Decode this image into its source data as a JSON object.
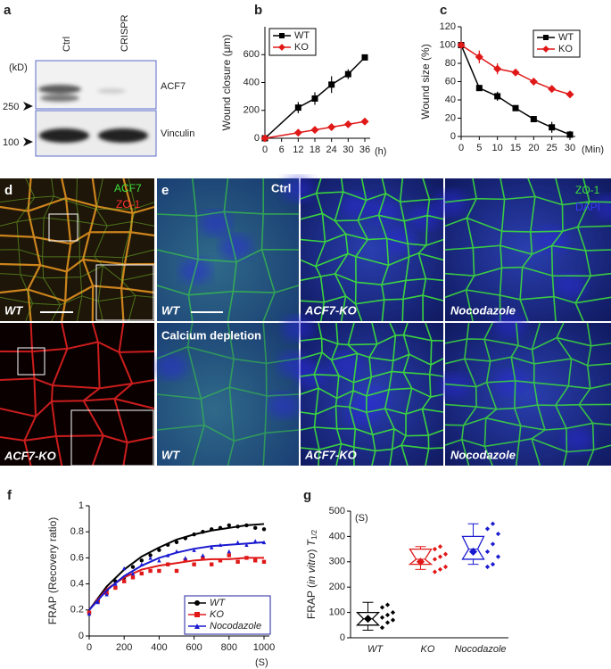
{
  "blot": {
    "letter": "a",
    "lanes": [
      "Ctrl",
      "CRISPR"
    ],
    "unit": "(kD)",
    "markers": [
      "250",
      "100"
    ],
    "proteins": [
      "ACF7",
      "Vinculin"
    ]
  },
  "microscopy": {
    "d": {
      "letter": "d",
      "channels": [
        "ACF7",
        "ZO-1"
      ],
      "rows": [
        "WT",
        "ACF7-KO"
      ]
    },
    "e": {
      "letter": "e",
      "condition": "Ctrl",
      "channels": [
        "ZO-1",
        "DAPI"
      ],
      "columns": [
        "WT",
        "ACF7-KO",
        "Nocodazole"
      ],
      "row2_condition": "Calcium depletion",
      "row2_columns": [
        "WT",
        "ACF7-KO",
        "Nocodazole"
      ]
    }
  },
  "chart_data": [
    {
      "type": "line",
      "letter": "b",
      "ylabel": "Wound closure (μm)",
      "x_unit": "(h)",
      "xlim": [
        0,
        36
      ],
      "xticks": [
        0,
        6,
        12,
        18,
        24,
        30,
        36
      ],
      "ylim": [
        0,
        800
      ],
      "yticks": [
        0,
        200,
        400,
        600
      ],
      "x": [
        0,
        12,
        18,
        24,
        30,
        36
      ],
      "legend": "upper left",
      "series": [
        {
          "name": "WT",
          "color": "#000000",
          "marker": "square",
          "values": [
            0,
            220,
            285,
            385,
            460,
            580
          ],
          "errors": [
            0,
            40,
            45,
            60,
            35,
            20
          ]
        },
        {
          "name": "KO",
          "color": "#e01818",
          "marker": "diamond",
          "values": [
            0,
            40,
            60,
            80,
            100,
            120
          ],
          "errors": [
            0,
            8,
            8,
            8,
            8,
            10
          ]
        }
      ]
    },
    {
      "type": "line",
      "letter": "c",
      "ylabel": "Wound size (%)",
      "x_unit": "(Min)",
      "xlim": [
        0,
        30
      ],
      "xticks": [
        0,
        5,
        10,
        15,
        20,
        25,
        30
      ],
      "ylim": [
        0,
        120
      ],
      "yticks": [
        0,
        20,
        40,
        60,
        80,
        100,
        120
      ],
      "x": [
        0,
        5,
        10,
        15,
        20,
        25,
        30
      ],
      "legend": "upper right",
      "series": [
        {
          "name": "WT",
          "color": "#000000",
          "marker": "square",
          "values": [
            100,
            53,
            44,
            31,
            19,
            10,
            2
          ],
          "errors": [
            0,
            3,
            5,
            2,
            2,
            6,
            4
          ]
        },
        {
          "name": "KO",
          "color": "#e01818",
          "marker": "diamond",
          "values": [
            100,
            87,
            74,
            70,
            60,
            52,
            46
          ],
          "errors": [
            0,
            7,
            6,
            3,
            3,
            3,
            3
          ]
        }
      ]
    },
    {
      "type": "scatter",
      "letter": "f",
      "ylabel": "FRAP (Recovery ratio)",
      "x_unit": "(S)",
      "xlim": [
        0,
        1000
      ],
      "xticks": [
        0,
        200,
        400,
        600,
        800,
        1000
      ],
      "ylim": [
        0,
        1
      ],
      "yticks": [
        0,
        0.2,
        0.4,
        0.6,
        0.8,
        1
      ],
      "x": [
        0,
        50,
        100,
        150,
        200,
        250,
        300,
        350,
        400,
        450,
        500,
        550,
        600,
        650,
        700,
        750,
        800,
        850,
        900,
        950,
        1000
      ],
      "fit_x": [
        0,
        100,
        200,
        300,
        400,
        500,
        600,
        700,
        800,
        900,
        1000
      ],
      "legend": "lower right",
      "series": [
        {
          "name": "WT",
          "color": "#000000",
          "marker": "circle",
          "values": [
            0.18,
            0.27,
            0.35,
            0.42,
            0.45,
            0.53,
            0.58,
            0.62,
            0.66,
            0.7,
            0.72,
            0.75,
            0.78,
            0.8,
            0.82,
            0.83,
            0.85,
            0.84,
            0.85,
            0.83,
            0.82
          ],
          "fit": [
            0.2,
            0.38,
            0.51,
            0.61,
            0.68,
            0.74,
            0.78,
            0.81,
            0.83,
            0.85,
            0.86
          ]
        },
        {
          "name": "KO",
          "color": "#e01818",
          "marker": "square",
          "values": [
            0.18,
            0.27,
            0.33,
            0.37,
            0.42,
            0.45,
            0.48,
            0.5,
            0.5,
            0.55,
            0.5,
            0.58,
            0.55,
            0.6,
            0.55,
            0.58,
            0.62,
            0.57,
            0.6,
            0.58,
            0.57
          ],
          "fit": [
            0.2,
            0.36,
            0.45,
            0.51,
            0.54,
            0.56,
            0.58,
            0.59,
            0.59,
            0.6,
            0.6
          ]
        },
        {
          "name": "Nocodazole",
          "color": "#1a1ad0",
          "marker": "triangle",
          "values": [
            0.17,
            0.26,
            0.32,
            0.4,
            0.52,
            0.48,
            0.55,
            0.6,
            0.58,
            0.62,
            0.65,
            0.6,
            0.66,
            0.62,
            0.68,
            0.7,
            0.65,
            0.72,
            0.7,
            0.73,
            0.72
          ],
          "fit": [
            0.2,
            0.35,
            0.46,
            0.54,
            0.6,
            0.64,
            0.67,
            0.69,
            0.7,
            0.71,
            0.72
          ]
        }
      ]
    },
    {
      "type": "box",
      "letter": "g",
      "ylabel_parts": [
        "FRAP (",
        "in vitro",
        ") ",
        "T",
        "1/2"
      ],
      "y_unit": "(S)",
      "ylim": [
        0,
        500
      ],
      "yticks": [
        0,
        100,
        200,
        300,
        400,
        500
      ],
      "categories": [
        "WT",
        "KO",
        "Nocodazole"
      ],
      "series": [
        {
          "color": "#000000",
          "low": 30,
          "q1": 50,
          "median": 75,
          "q3": 100,
          "high": 140,
          "mean": 75,
          "points": [
            40,
            60,
            70,
            80,
            90,
            100,
            120,
            130
          ]
        },
        {
          "color": "#e01818",
          "low": 270,
          "q1": 290,
          "median": 310,
          "q3": 350,
          "high": 360,
          "mean": 300,
          "points": [
            260,
            270,
            280,
            310,
            320,
            330,
            350,
            360
          ]
        },
        {
          "color": "#1a1ad0",
          "low": 290,
          "q1": 310,
          "median": 350,
          "q3": 400,
          "high": 450,
          "mean": 340,
          "points": [
            280,
            290,
            320,
            340,
            370,
            410,
            430,
            450
          ]
        }
      ]
    }
  ]
}
